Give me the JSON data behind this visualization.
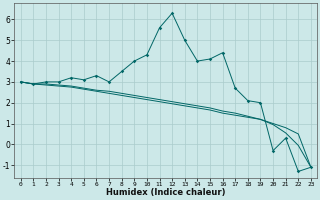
{
  "xlabel": "Humidex (Indice chaleur)",
  "background_color": "#cce8e8",
  "grid_color": "#aacccc",
  "line_color": "#006666",
  "xlim": [
    -0.5,
    23.5
  ],
  "ylim": [
    -1.6,
    6.8
  ],
  "xticks": [
    0,
    1,
    2,
    3,
    4,
    5,
    6,
    7,
    8,
    9,
    10,
    11,
    12,
    13,
    14,
    15,
    16,
    17,
    18,
    19,
    20,
    21,
    22,
    23
  ],
  "yticks": [
    -1,
    0,
    1,
    2,
    3,
    4,
    5,
    6
  ],
  "series_main": [
    3.0,
    2.9,
    3.0,
    3.0,
    3.2,
    3.1,
    3.3,
    3.0,
    3.5,
    4.0,
    4.3,
    5.6,
    6.3,
    5.0,
    4.0,
    4.1,
    4.4,
    2.7,
    2.1,
    2.0,
    -0.3,
    0.3,
    -1.3,
    -1.1
  ],
  "series_line1": [
    3.0,
    2.9,
    2.9,
    2.85,
    2.8,
    2.7,
    2.6,
    2.55,
    2.45,
    2.35,
    2.25,
    2.15,
    2.05,
    1.95,
    1.85,
    1.75,
    1.6,
    1.5,
    1.35,
    1.2,
    0.95,
    0.55,
    -0.05,
    -1.1
  ],
  "series_line2": [
    3.0,
    2.9,
    2.85,
    2.8,
    2.75,
    2.65,
    2.55,
    2.45,
    2.35,
    2.25,
    2.15,
    2.05,
    1.95,
    1.85,
    1.75,
    1.65,
    1.5,
    1.4,
    1.3,
    1.2,
    1.0,
    0.8,
    0.5,
    -1.1
  ]
}
